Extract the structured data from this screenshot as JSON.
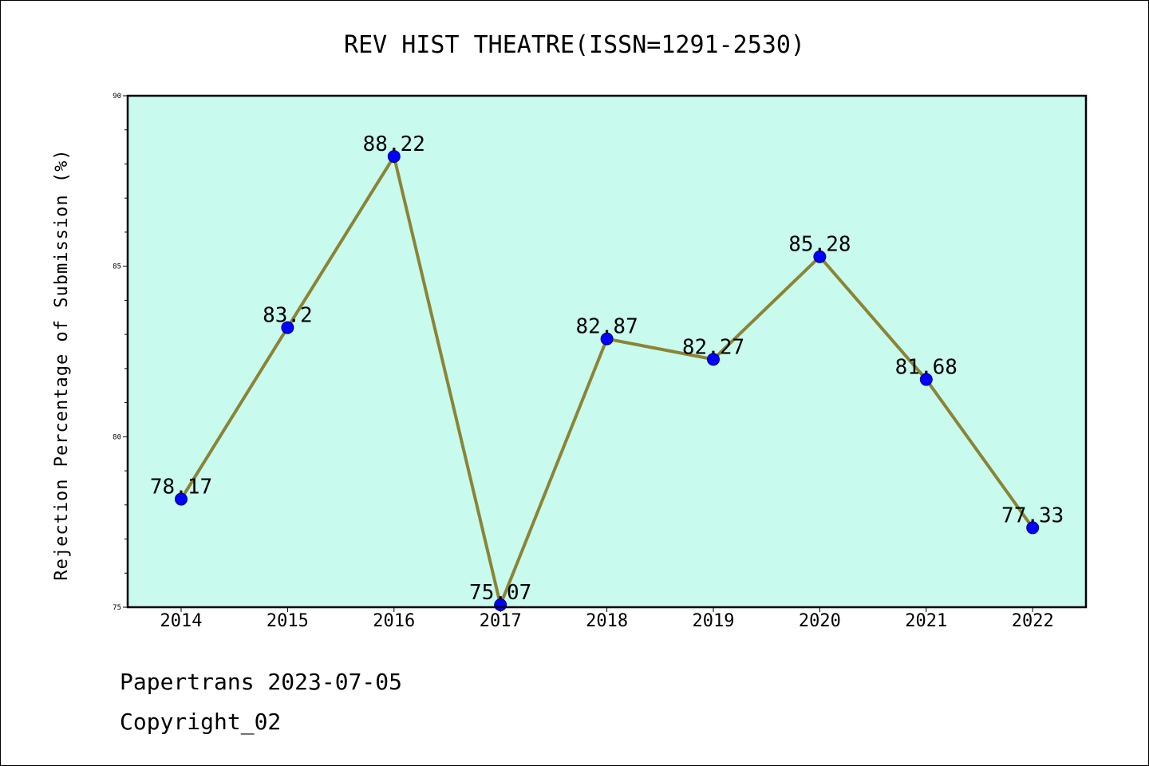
{
  "chart_data": {
    "type": "line",
    "title": "REV HIST THEATRE(ISSN=1291-2530)",
    "xlabel": "",
    "ylabel": "Rejection Percentage of Submission (%)",
    "categories": [
      "2014",
      "2015",
      "2016",
      "2017",
      "2018",
      "2019",
      "2020",
      "2021",
      "2022"
    ],
    "values": [
      78.17,
      83.2,
      88.22,
      75.07,
      82.87,
      82.27,
      85.28,
      81.68,
      77.33
    ],
    "data_labels": [
      "78.17",
      "83.2",
      "88.22",
      "75.07",
      "82.87",
      "82.27",
      "85.28",
      "81.68",
      "77.33"
    ],
    "ylim": [
      75,
      90
    ],
    "yticks": [
      75,
      80,
      85,
      90
    ],
    "ytick_labels": [
      "75",
      "80",
      "85",
      "90"
    ],
    "grid": false,
    "legend": "none",
    "colors": {
      "plot_background": "#c8fbee",
      "line": "#8b8435",
      "marker": "#0000ff"
    }
  },
  "footer": {
    "line1": "Papertrans 2023-07-05",
    "line2": "Copyright_02"
  }
}
